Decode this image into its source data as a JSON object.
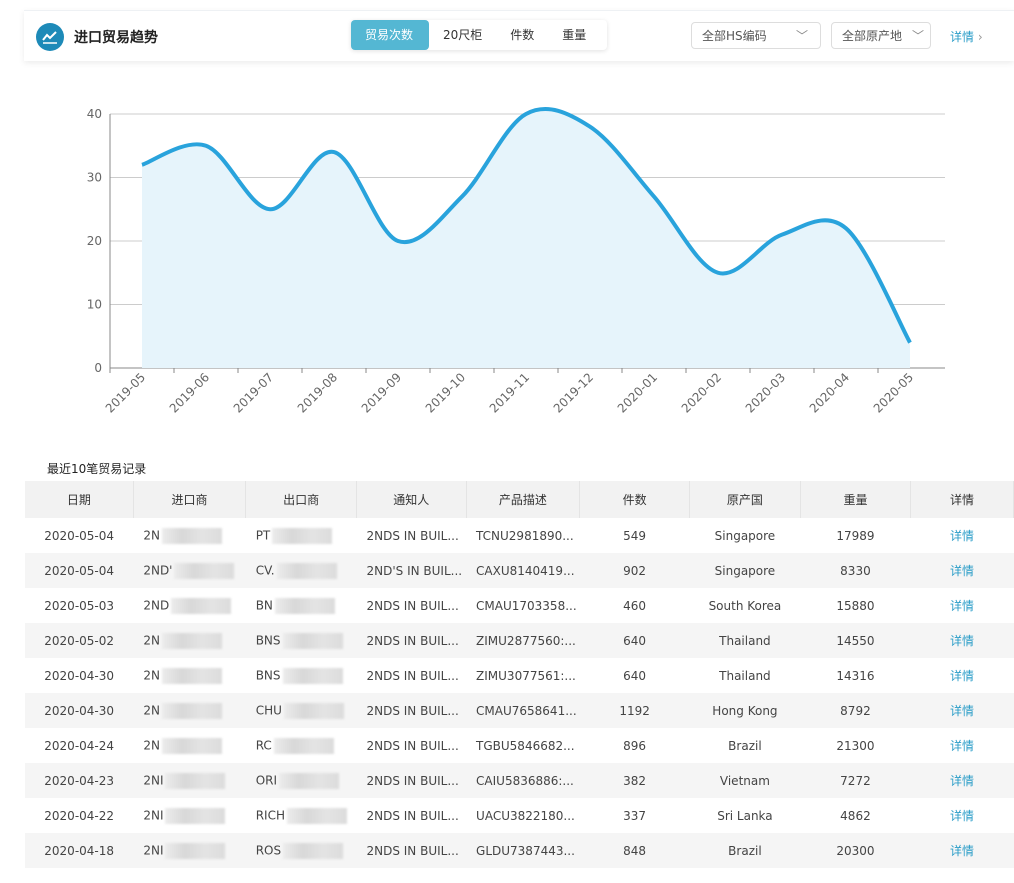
{
  "header": {
    "title": "进口贸易趋势",
    "icon": "trend-chart-icon",
    "tabs": [
      "贸易次数",
      "20尺柜",
      "件数",
      "重量"
    ],
    "active_tab": 0,
    "hs_select": "全部HS编码",
    "origin_select": "全部原产地",
    "detail": "详情"
  },
  "chart_data": {
    "type": "area",
    "x": [
      "2019-05",
      "2019-06",
      "2019-07",
      "2019-08",
      "2019-09",
      "2019-10",
      "2019-11",
      "2019-12",
      "2020-01",
      "2020-02",
      "2020-03",
      "2020-04",
      "2020-05"
    ],
    "values": [
      32,
      35,
      25,
      34,
      20,
      27,
      40,
      38,
      27,
      15,
      21,
      22,
      4
    ],
    "ylim": [
      0,
      40
    ],
    "yticks": [
      0,
      10,
      20,
      30,
      40
    ],
    "grid": true,
    "color": "#29a3dc",
    "fill": "#e6f4fb"
  },
  "records": {
    "title": "最近10笔贸易记录",
    "columns": [
      "日期",
      "进口商",
      "出口商",
      "通知人",
      "产品描述",
      "件数",
      "原产国",
      "重量",
      "详情"
    ],
    "rows": [
      [
        "2020-05-04",
        "2N",
        "PT",
        "2NDS IN BUIL...",
        "TCNU2981890...",
        "549",
        "Singapore",
        "17989",
        "详情"
      ],
      [
        "2020-05-04",
        "2ND'",
        "CV.",
        "2ND'S IN BUIL...",
        "CAXU8140419...",
        "902",
        "Singapore",
        "8330",
        "详情"
      ],
      [
        "2020-05-03",
        "2ND",
        "BN",
        "2NDS IN BUIL...",
        "CMAU1703358...",
        "460",
        "South Korea",
        "15880",
        "详情"
      ],
      [
        "2020-05-02",
        "2N",
        "BNS",
        "2NDS IN BUIL...",
        "ZIMU2877560:...",
        "640",
        "Thailand",
        "14550",
        "详情"
      ],
      [
        "2020-04-30",
        "2N",
        "BNS",
        "2NDS IN BUIL...",
        "ZIMU3077561:...",
        "640",
        "Thailand",
        "14316",
        "详情"
      ],
      [
        "2020-04-30",
        "2N",
        "CHU",
        "2NDS IN BUIL...",
        "CMAU7658641...",
        "1192",
        "Hong Kong",
        "8792",
        "详情"
      ],
      [
        "2020-04-24",
        "2N",
        "RC",
        "2NDS IN BUIL...",
        "TGBU5846682...",
        "896",
        "Brazil",
        "21300",
        "详情"
      ],
      [
        "2020-04-23",
        "2NI",
        "ORI",
        "2NDS IN BUIL...",
        "CAIU5836886:...",
        "382",
        "Vietnam",
        "7272",
        "详情"
      ],
      [
        "2020-04-22",
        "2NI",
        "RICH",
        "2NDS IN BUIL...",
        "UACU3822180...",
        "337",
        "Sri Lanka",
        "4862",
        "详情"
      ],
      [
        "2020-04-18",
        "2NI",
        "ROS",
        "2NDS IN BUIL...",
        "GLDU7387443...",
        "848",
        "Brazil",
        "20300",
        "详情"
      ]
    ]
  }
}
